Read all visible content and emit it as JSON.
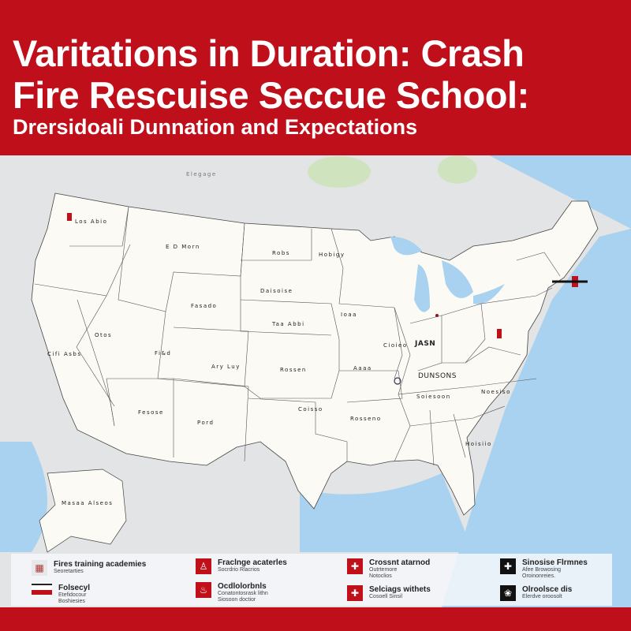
{
  "header": {
    "title_line1": "Varitations in Duration: Crash",
    "title_line2": "Fire Rescuise Seccue School:",
    "subtitle": "Drersidoali Dunnation and Expectations"
  },
  "colors": {
    "brand_red": "#bf0f1b",
    "land": "#fbfaf5",
    "water": "#a8d2ef",
    "foreign_land": "#e3e4e5",
    "parks": "#cfe3bf"
  },
  "map": {
    "labels": [
      "Elegage",
      "Los Abio",
      "E D Morn",
      "Robs",
      "Hobigy",
      "Daisoise",
      "Fasado",
      "Otos",
      "Cifi Asbs",
      "Fi&d",
      "Taa Abbi",
      "Ary Luy",
      "Rossen",
      "Ioaa",
      "Cioieo",
      "JASN",
      "Aaaa",
      "DUNSONS",
      "Soiesoon",
      "Rosseno",
      "Coisso",
      "Fesose",
      "Pord",
      "Noesiso",
      "Hoisiio",
      "Masaa Alseos"
    ],
    "markers": [
      "pin-washington",
      "pin-new-york",
      "pin-pennsylvania",
      "pin-chicago"
    ]
  },
  "legend": [
    {
      "icon": "building-icon",
      "title": "Fires training academies",
      "sub": "Seoretarties"
    },
    {
      "icon": "flag-icon",
      "title": "Folsecyl",
      "sub": "Etefidocour\nBoshiesies"
    },
    {
      "icon": "firefighter-icon",
      "title": "Fraclnge acaterles",
      "sub": "Socrdrio Rlacrios"
    },
    {
      "icon": "extinguisher-icon",
      "title": "Ocdlolorbnls",
      "sub": "Conatontosrask lithn\nSiosoon doctior"
    },
    {
      "icon": "fire-icon",
      "title": "Crossnt atarnod",
      "sub": "Outrtemore\nNotoclios"
    },
    {
      "icon": "fire-icon",
      "title": "Selciags withets",
      "sub": "Cosoell Sinsil"
    },
    {
      "icon": "plus-icon",
      "title": "Sinosise Flrmnes",
      "sub": "Afee Browosing\nOroinonreies."
    },
    {
      "icon": "badge-icon",
      "title": "Olroolsce dis",
      "sub": "Elerdve oroosolt"
    }
  ]
}
